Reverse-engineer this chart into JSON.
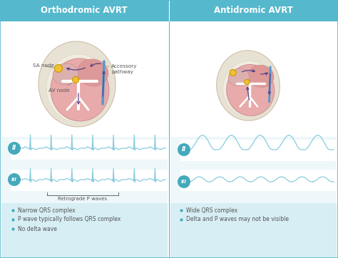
{
  "title_left": "Orthodromic AVRT",
  "title_right": "Antidromic AVRT",
  "header_color": "#55b8cc",
  "bg_color": "#ffffff",
  "panel_bg": "#eef7fa",
  "bottom_bg": "#d6eef4",
  "ecg_color": "#88ccdd",
  "lead_badge_color": "#44aabb",
  "notes_left": [
    "Narrow QRS complex",
    "P wave typically follows QRS complex",
    "No delta wave"
  ],
  "notes_right": [
    "Wide QRS complex",
    "Delta and P waves may not be visible"
  ],
  "retrograde_label": "Retrograde P waves",
  "sa_node_label": "SA node",
  "av_node_label": "AV node",
  "accessory_label": "Accessory\npathway",
  "heart_outer_fc": "#e8e2d4",
  "heart_outer_ec": "#ccc0a8",
  "heart_main_fc": "#e8aaaa",
  "heart_main_ec": "#cc9090",
  "heart_la_fc": "#dd9898",
  "heart_ra_fc": "#ddb0b0",
  "sa_fc": "#f0c030",
  "sa_ec": "#cc9900",
  "av_fc": "#f0c030",
  "av_ec": "#cc9900",
  "bundle_color": "#f0ece0",
  "ap_color": "#5599cc",
  "arrow_color": "#554488",
  "label_color": "#555555",
  "line_color": "#888888"
}
